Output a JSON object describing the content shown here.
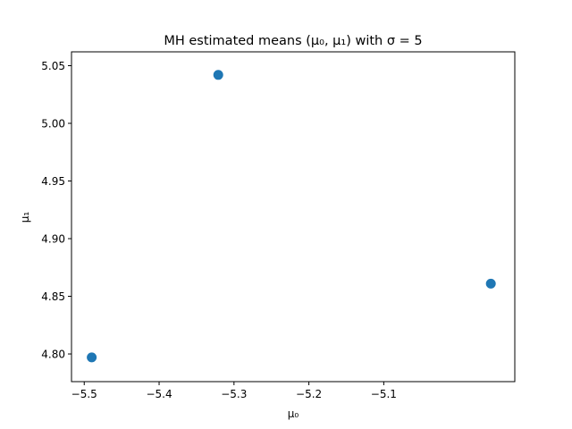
{
  "chart_data": {
    "type": "scatter",
    "title": "MH estimated means (μ₀, μ₁) with σ = 5",
    "xlabel": "μ₀",
    "ylabel": "μ₁",
    "xlim": [
      -5.517,
      -4.925
    ],
    "ylim": [
      4.776,
      5.062
    ],
    "xticks": [
      -5.5,
      -5.4,
      -5.3,
      -5.2,
      -5.1
    ],
    "xtick_labels": [
      "−5.5",
      "−5.4",
      "−5.3",
      "−5.2",
      "−5.1"
    ],
    "yticks": [
      4.8,
      4.85,
      4.9,
      4.95,
      5.0,
      5.05
    ],
    "ytick_labels": [
      "4.80",
      "4.85",
      "4.90",
      "4.95",
      "5.00",
      "5.05"
    ],
    "grid": false,
    "marker_color": "#1f77b4",
    "series": [
      {
        "points": [
          {
            "x": -5.49,
            "y": 4.797
          },
          {
            "x": -5.321,
            "y": 5.042
          },
          {
            "x": -4.957,
            "y": 4.861
          }
        ]
      }
    ]
  }
}
